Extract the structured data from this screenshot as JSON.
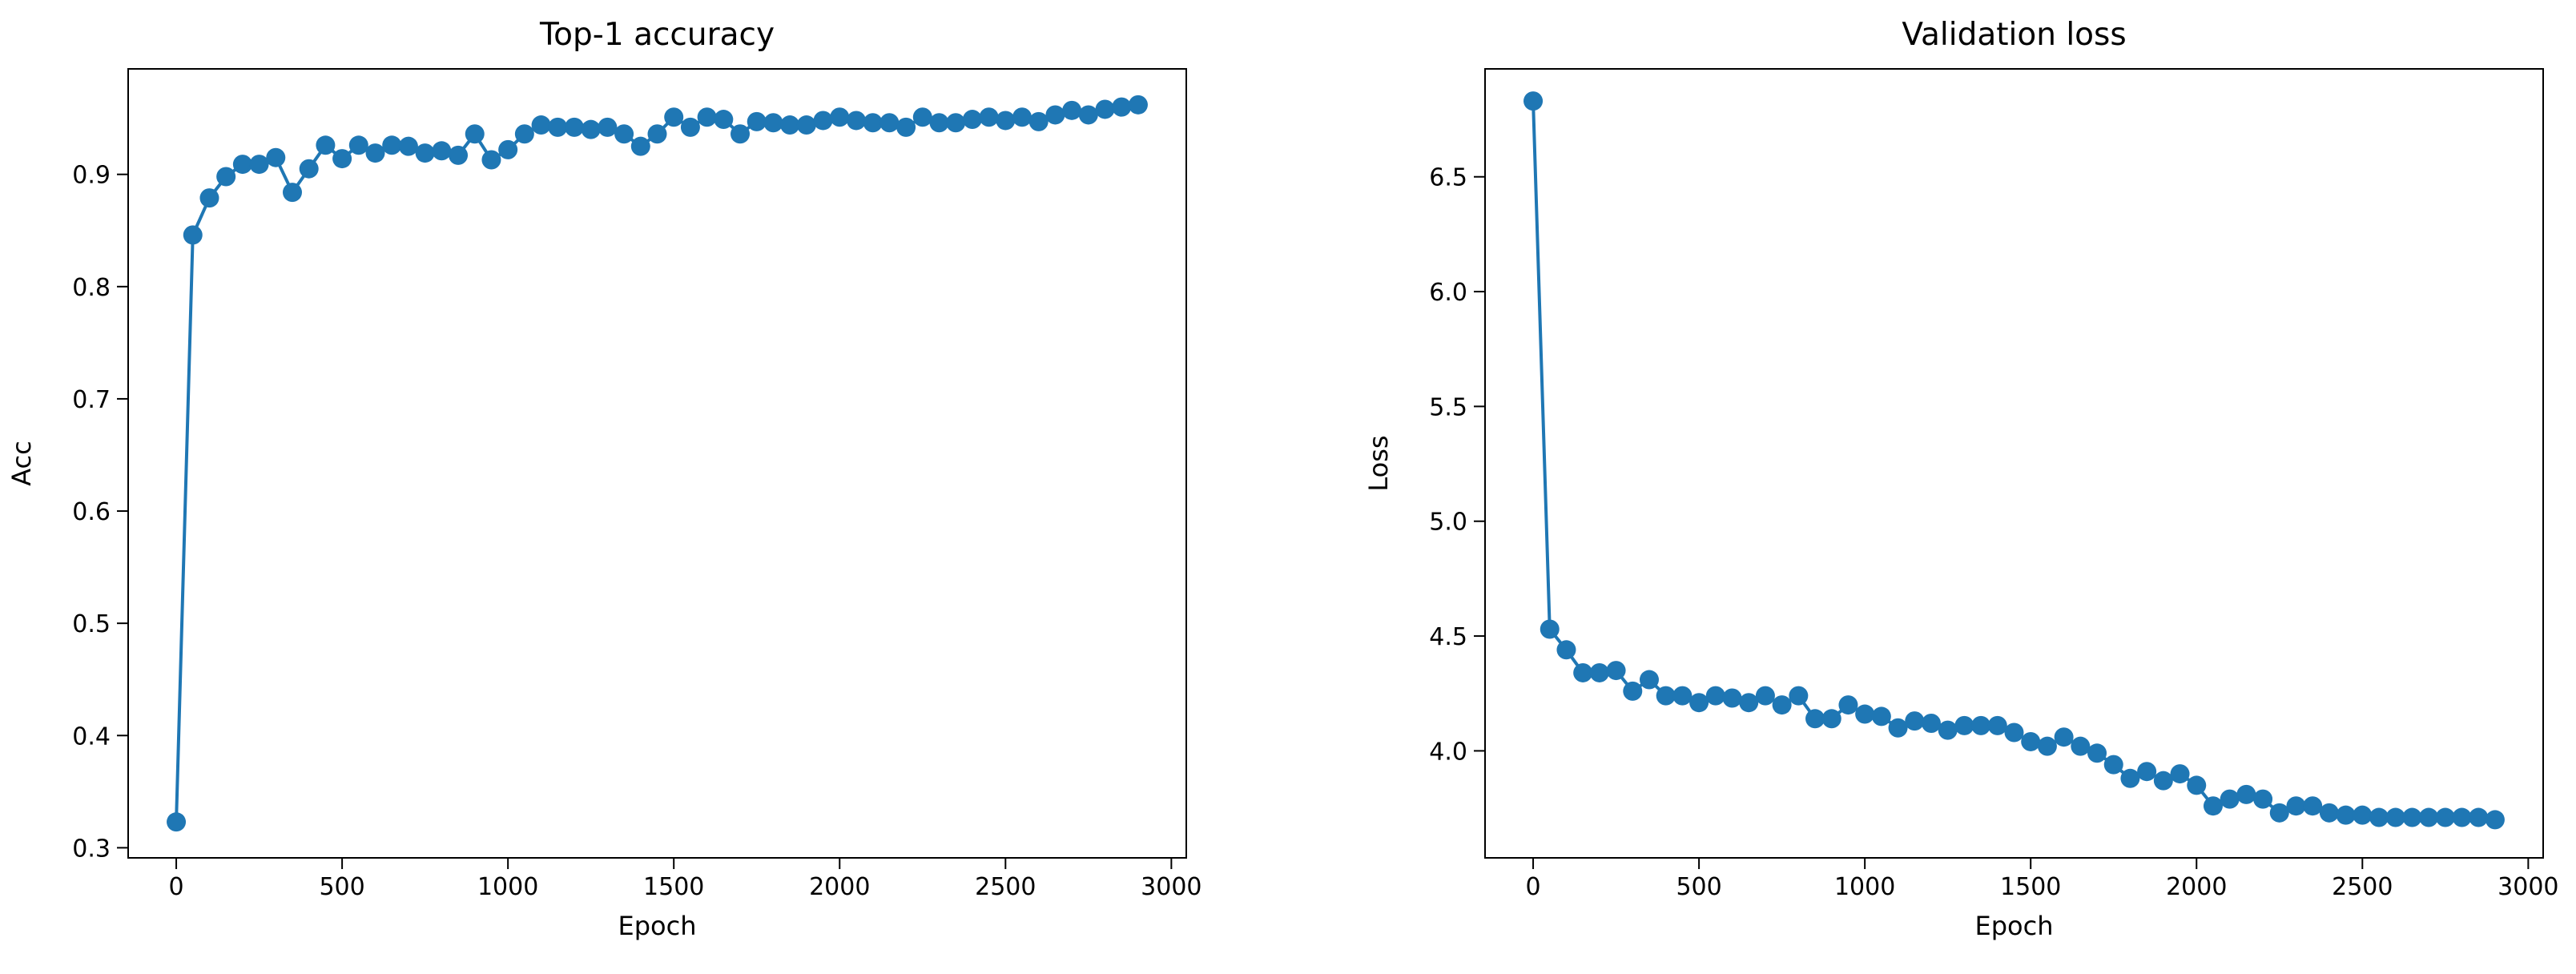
{
  "chart_data": [
    {
      "type": "line",
      "title": "Top-1 accuracy",
      "x_label": "Epoch",
      "y_label": "Acc",
      "color": "#1f77b4",
      "x": [
        0,
        50,
        100,
        150,
        200,
        250,
        300,
        350,
        400,
        450,
        500,
        550,
        600,
        650,
        700,
        750,
        800,
        850,
        900,
        950,
        1000,
        1050,
        1100,
        1150,
        1200,
        1250,
        1300,
        1350,
        1400,
        1450,
        1500,
        1550,
        1600,
        1650,
        1700,
        1750,
        1800,
        1850,
        1900,
        1950,
        2000,
        2050,
        2100,
        2150,
        2200,
        2250,
        2300,
        2350,
        2400,
        2450,
        2500,
        2550,
        2600,
        2650,
        2700,
        2750,
        2800,
        2850,
        2900
      ],
      "values": [
        0.323,
        0.846,
        0.879,
        0.898,
        0.909,
        0.909,
        0.915,
        0.884,
        0.905,
        0.926,
        0.914,
        0.926,
        0.919,
        0.926,
        0.925,
        0.919,
        0.921,
        0.917,
        0.936,
        0.913,
        0.922,
        0.936,
        0.944,
        0.942,
        0.942,
        0.94,
        0.942,
        0.936,
        0.925,
        0.936,
        0.951,
        0.942,
        0.951,
        0.949,
        0.936,
        0.947,
        0.946,
        0.944,
        0.944,
        0.948,
        0.951,
        0.948,
        0.946,
        0.946,
        0.942,
        0.951,
        0.946,
        0.946,
        0.949,
        0.951,
        0.948,
        0.951,
        0.947,
        0.953,
        0.957,
        0.953,
        0.958,
        0.96,
        0.962
      ],
      "xlim": [
        -145,
        3045
      ],
      "xticks": [
        0,
        500,
        1000,
        1500,
        2000,
        2500,
        3000
      ],
      "ylim": [
        0.291,
        0.994
      ],
      "yticks": [
        0.3,
        0.4,
        0.5,
        0.6,
        0.7,
        0.8,
        0.9
      ]
    },
    {
      "type": "line",
      "title": "Validation loss",
      "x_label": "Epoch",
      "y_label": "Loss",
      "color": "#1f77b4",
      "x": [
        0,
        50,
        100,
        150,
        200,
        250,
        300,
        350,
        400,
        450,
        500,
        550,
        600,
        650,
        700,
        750,
        800,
        850,
        900,
        950,
        1000,
        1050,
        1100,
        1150,
        1200,
        1250,
        1300,
        1350,
        1400,
        1450,
        1500,
        1550,
        1600,
        1650,
        1700,
        1750,
        1800,
        1850,
        1900,
        1950,
        2000,
        2050,
        2100,
        2150,
        2200,
        2250,
        2300,
        2350,
        2400,
        2450,
        2500,
        2550,
        2600,
        2650,
        2700,
        2750,
        2800,
        2850,
        2900
      ],
      "values": [
        6.83,
        4.53,
        4.44,
        4.34,
        4.34,
        4.35,
        4.26,
        4.31,
        4.24,
        4.24,
        4.21,
        4.24,
        4.23,
        4.21,
        4.24,
        4.2,
        4.24,
        4.14,
        4.14,
        4.2,
        4.16,
        4.15,
        4.1,
        4.13,
        4.12,
        4.09,
        4.11,
        4.11,
        4.11,
        4.08,
        4.04,
        4.02,
        4.06,
        4.02,
        3.99,
        3.94,
        3.88,
        3.91,
        3.87,
        3.9,
        3.85,
        3.76,
        3.79,
        3.81,
        3.79,
        3.73,
        3.76,
        3.76,
        3.73,
        3.72,
        3.72,
        3.71,
        3.71,
        3.71,
        3.71,
        3.71,
        3.71,
        3.71,
        3.7
      ],
      "xlim": [
        -145,
        3045
      ],
      "xticks": [
        0,
        500,
        1000,
        1500,
        2000,
        2500,
        3000
      ],
      "ylim": [
        3.534,
        6.97
      ],
      "yticks": [
        {
          "value": 4,
          "label": "4.0"
        },
        4.5,
        {
          "value": 5,
          "label": "5.0"
        },
        5.5,
        {
          "value": 6,
          "label": "6.0"
        },
        6.5
      ]
    }
  ]
}
